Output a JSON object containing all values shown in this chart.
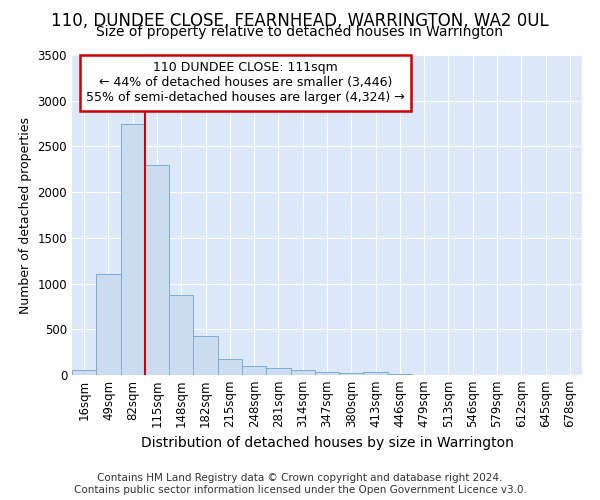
{
  "title1": "110, DUNDEE CLOSE, FEARNHEAD, WARRINGTON, WA2 0UL",
  "title2": "Size of property relative to detached houses in Warrington",
  "xlabel": "Distribution of detached houses by size in Warrington",
  "ylabel": "Number of detached properties",
  "footer1": "Contains HM Land Registry data © Crown copyright and database right 2024.",
  "footer2": "Contains public sector information licensed under the Open Government Licence v3.0.",
  "annotation_title": "110 DUNDEE CLOSE: 111sqm",
  "annotation_line1": "← 44% of detached houses are smaller (3,446)",
  "annotation_line2": "55% of semi-detached houses are larger (4,324) →",
  "bar_labels": [
    "16sqm",
    "49sqm",
    "82sqm",
    "115sqm",
    "148sqm",
    "182sqm",
    "215sqm",
    "248sqm",
    "281sqm",
    "314sqm",
    "347sqm",
    "380sqm",
    "413sqm",
    "446sqm",
    "479sqm",
    "513sqm",
    "546sqm",
    "579sqm",
    "612sqm",
    "645sqm",
    "678sqm"
  ],
  "bar_values": [
    50,
    1100,
    2750,
    2300,
    875,
    425,
    175,
    100,
    75,
    50,
    35,
    20,
    35,
    10,
    5,
    5,
    4,
    3,
    2,
    1,
    1
  ],
  "bar_color": "#ccdcf0",
  "bar_edge_color": "#7badd4",
  "vline_color": "#cc0000",
  "annotation_box_color": "#cc0000",
  "plot_bg_color": "#dce8f8",
  "fig_bg_color": "#ffffff",
  "ylim": [
    0,
    3500
  ],
  "yticks": [
    0,
    500,
    1000,
    1500,
    2000,
    2500,
    3000,
    3500
  ],
  "vline_x": 2.5,
  "title1_fontsize": 12,
  "title2_fontsize": 10,
  "xlabel_fontsize": 10,
  "ylabel_fontsize": 9,
  "tick_fontsize": 8.5,
  "annotation_fontsize": 9,
  "footer_fontsize": 7.5
}
